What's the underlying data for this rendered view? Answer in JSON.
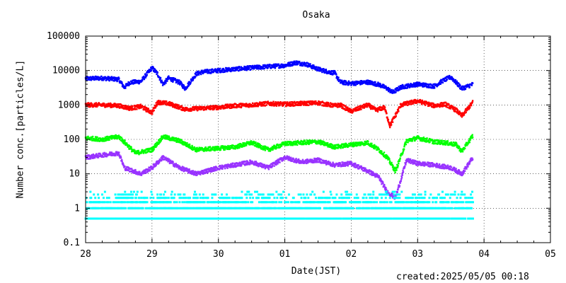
{
  "chart_data": {
    "type": "scatter",
    "title": "Osaka",
    "xlabel": "Date(JST)",
    "ylabel": "Number conc.[particles/L]",
    "x_scale": "time",
    "xlim": [
      "2025-04-28 00:00",
      "2025-05-05 00:00"
    ],
    "x_ticks": [
      "28",
      "29",
      "30",
      "01",
      "02",
      "03",
      "04",
      "05"
    ],
    "y_scale": "log",
    "ylim": [
      0.1,
      100000
    ],
    "y_ticks": [
      "0.1",
      "1",
      "10",
      "100",
      "1000",
      "10000",
      "100000"
    ],
    "grid": true,
    "legend": false,
    "series": [
      {
        "color": "#0000ff",
        "x": [
          "2025-04-28 00:00",
          "2025-04-28 06:00",
          "2025-04-28 12:00",
          "2025-04-28 14:00",
          "2025-04-28 16:00",
          "2025-04-28 20:00",
          "2025-04-29 00:00",
          "2025-04-29 02:00",
          "2025-04-29 04:00",
          "2025-04-29 06:00",
          "2025-04-29 10:00",
          "2025-04-29 12:00",
          "2025-04-29 16:00",
          "2025-04-29 18:00",
          "2025-04-30 00:00",
          "2025-04-30 06:00",
          "2025-04-30 12:00",
          "2025-04-30 18:00",
          "2025-05-01 00:00",
          "2025-05-01 04:00",
          "2025-05-01 08:00",
          "2025-05-01 12:00",
          "2025-05-01 16:00",
          "2025-05-01 18:00",
          "2025-05-01 20:00",
          "2025-05-02 00:00",
          "2025-05-02 06:00",
          "2025-05-02 10:00",
          "2025-05-02 13:00",
          "2025-05-02 15:00",
          "2025-05-02 18:00",
          "2025-05-03 00:00",
          "2025-05-03 06:00",
          "2025-05-03 09:00",
          "2025-05-03 12:00",
          "2025-05-03 16:00",
          "2025-05-03 20:00"
        ],
        "y": [
          5800,
          6000,
          5500,
          3200,
          4500,
          4800,
          12000,
          8000,
          4000,
          6000,
          4500,
          3000,
          8000,
          9000,
          10000,
          11000,
          12000,
          13000,
          14000,
          17000,
          15000,
          11000,
          9000,
          8500,
          4600,
          4200,
          4600,
          3900,
          3000,
          2300,
          3300,
          4000,
          3500,
          5000,
          6500,
          3000,
          4000
        ]
      },
      {
        "color": "#ff0000",
        "x": [
          "2025-04-28 00:00",
          "2025-04-28 06:00",
          "2025-04-28 12:00",
          "2025-04-28 16:00",
          "2025-04-28 20:00",
          "2025-04-29 00:00",
          "2025-04-29 02:00",
          "2025-04-29 06:00",
          "2025-04-29 12:00",
          "2025-04-29 18:00",
          "2025-04-30 00:00",
          "2025-04-30 06:00",
          "2025-04-30 12:00",
          "2025-04-30 18:00",
          "2025-05-01 00:00",
          "2025-05-01 06:00",
          "2025-05-01 12:00",
          "2025-05-01 18:00",
          "2025-05-01 20:00",
          "2025-05-02 00:00",
          "2025-05-02 06:00",
          "2025-05-02 09:00",
          "2025-05-02 12:00",
          "2025-05-02 14:00",
          "2025-05-02 18:00",
          "2025-05-03 00:00",
          "2025-05-03 06:00",
          "2025-05-03 10:00",
          "2025-05-03 14:00",
          "2025-05-03 16:00",
          "2025-05-03 20:00"
        ],
        "y": [
          1000,
          1000,
          950,
          800,
          900,
          600,
          1200,
          1100,
          750,
          800,
          850,
          950,
          1000,
          1100,
          1050,
          1100,
          1150,
          950,
          1000,
          650,
          1000,
          700,
          850,
          250,
          1000,
          1300,
          950,
          1050,
          700,
          480,
          1200
        ]
      },
      {
        "color": "#00ff00",
        "x": [
          "2025-04-28 00:00",
          "2025-04-28 06:00",
          "2025-04-28 12:00",
          "2025-04-28 18:00",
          "2025-04-29 00:00",
          "2025-04-29 04:00",
          "2025-04-29 10:00",
          "2025-04-29 16:00",
          "2025-04-30 00:00",
          "2025-04-30 06:00",
          "2025-04-30 12:00",
          "2025-04-30 18:00",
          "2025-05-01 00:00",
          "2025-05-01 06:00",
          "2025-05-01 12:00",
          "2025-05-01 18:00",
          "2025-05-02 00:00",
          "2025-05-02 06:00",
          "2025-05-02 10:00",
          "2025-05-02 13:00",
          "2025-05-02 16:00",
          "2025-05-02 20:00",
          "2025-05-03 00:00",
          "2025-05-03 06:00",
          "2025-05-03 10:00",
          "2025-05-03 14:00",
          "2025-05-03 16:00",
          "2025-05-03 20:00"
        ],
        "y": [
          110,
          100,
          120,
          40,
          50,
          120,
          90,
          50,
          55,
          60,
          80,
          50,
          75,
          80,
          85,
          60,
          70,
          80,
          50,
          30,
          12,
          90,
          110,
          85,
          80,
          70,
          45,
          130
        ]
      },
      {
        "color": "#9933ff",
        "x": [
          "2025-04-28 00:00",
          "2025-04-28 06:00",
          "2025-04-28 12:00",
          "2025-04-28 14:00",
          "2025-04-28 20:00",
          "2025-04-29 00:00",
          "2025-04-29 04:00",
          "2025-04-29 10:00",
          "2025-04-29 16:00",
          "2025-04-30 00:00",
          "2025-04-30 06:00",
          "2025-04-30 12:00",
          "2025-04-30 18:00",
          "2025-05-01 00:00",
          "2025-05-01 06:00",
          "2025-05-01 12:00",
          "2025-05-01 18:00",
          "2025-05-02 00:00",
          "2025-05-02 06:00",
          "2025-05-02 10:00",
          "2025-05-02 13:00",
          "2025-05-02 16:00",
          "2025-05-02 20:00",
          "2025-05-03 00:00",
          "2025-05-03 06:00",
          "2025-05-03 12:00",
          "2025-05-03 16:00",
          "2025-05-03 20:00"
        ],
        "y": [
          30,
          35,
          40,
          15,
          10,
          15,
          30,
          15,
          10,
          15,
          18,
          22,
          15,
          30,
          22,
          25,
          18,
          20,
          12,
          8,
          3,
          2,
          25,
          20,
          18,
          15,
          10,
          30
        ]
      },
      {
        "color": "#00ffff",
        "x": [
          "2025-04-28 00:00",
          "2025-04-28 12:00",
          "2025-04-29 00:00",
          "2025-04-29 12:00",
          "2025-04-30 00:00",
          "2025-04-30 12:00",
          "2025-05-01 00:00",
          "2025-05-01 12:00",
          "2025-05-02 00:00",
          "2025-05-02 12:00",
          "2025-05-03 00:00",
          "2025-05-03 12:00",
          "2025-05-03 20:00"
        ],
        "y": [
          2,
          1.5,
          1,
          1.5,
          1,
          2,
          1.5,
          2,
          1,
          1.5,
          2,
          1.5,
          2
        ],
        "levels": [
          0.5,
          1,
          1.5,
          2,
          2.5,
          3
        ]
      }
    ]
  },
  "footer": {
    "created": "created:2025/05/05 00:18"
  }
}
